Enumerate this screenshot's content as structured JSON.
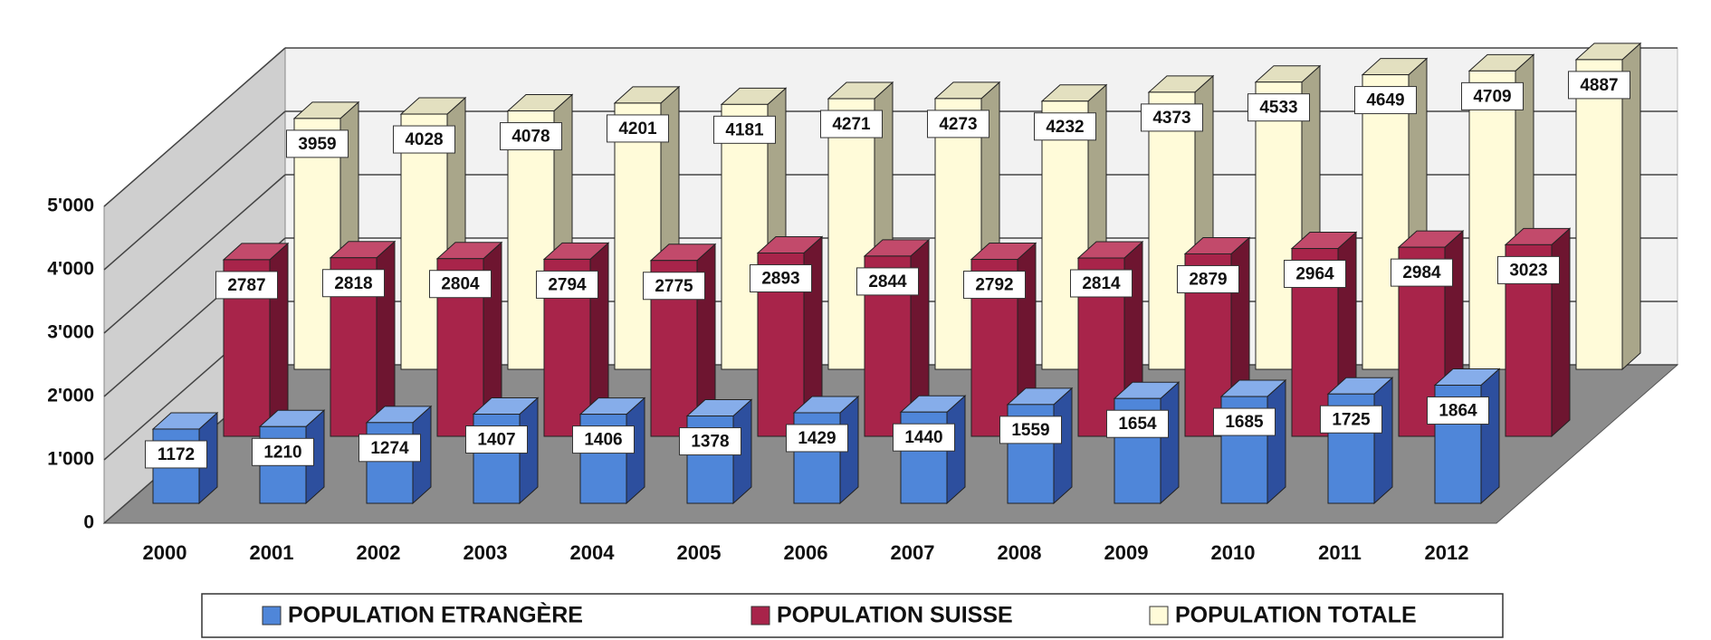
{
  "chart_data": {
    "type": "bar3d",
    "categories": [
      "2000",
      "2001",
      "2002",
      "2003",
      "2004",
      "2005",
      "2006",
      "2007",
      "2008",
      "2009",
      "2010",
      "2011",
      "2012"
    ],
    "series": [
      {
        "name": "POPULATION ETRANGÈRE",
        "color": "#4f86d9",
        "values": [
          1172,
          1210,
          1274,
          1407,
          1406,
          1378,
          1429,
          1440,
          1559,
          1654,
          1685,
          1725,
          1864
        ]
      },
      {
        "name": "POPULATION SUISSE",
        "color": "#a8244a",
        "values": [
          2787,
          2818,
          2804,
          2794,
          2775,
          2893,
          2844,
          2792,
          2814,
          2879,
          2964,
          2984,
          3023
        ]
      },
      {
        "name": "POPULATION TOTALE",
        "color": "#fffbd9",
        "values": [
          3959,
          4028,
          4078,
          4201,
          4181,
          4271,
          4273,
          4232,
          4373,
          4533,
          4649,
          4709,
          4887
        ]
      }
    ],
    "ylim": [
      0,
      5000
    ],
    "yticks": [
      {
        "value": 0,
        "label": "0"
      },
      {
        "value": 1000,
        "label": "1'000"
      },
      {
        "value": 2000,
        "label": "2'000"
      },
      {
        "value": 3000,
        "label": "3'000"
      },
      {
        "value": 4000,
        "label": "4'000"
      },
      {
        "value": 5000,
        "label": "5'000"
      }
    ],
    "grid": true,
    "legend": "bottom"
  }
}
